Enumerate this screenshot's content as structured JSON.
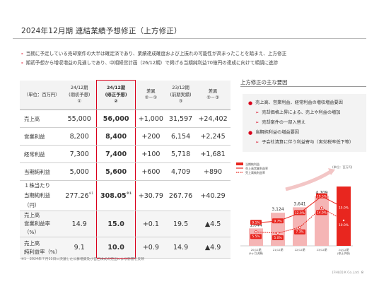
{
  "title": "2024年12月期 連結業績予想修正（上方修正）",
  "bullets": [
    "当期に予定している売却案件の大半は確定済であり、業績達成確度および上振れの可能性が高まったことを踏まえ、上方修正",
    "期初予想から増収増益の見通しであり、中期経営計画（26/12期）で掲げる当期純利益70億円の達成に向けて順調に進捗"
  ],
  "table": {
    "unit_label": "（単位：百万円）",
    "headers": [
      {
        "l1": "24/12期",
        "l2": "(期初予想)",
        "l3": "①"
      },
      {
        "l1": "24/12期",
        "l2": "(修正予想)",
        "l3": "②"
      },
      {
        "l1": "差異",
        "l2": "②－①",
        "l3": ""
      },
      {
        "l1": "23/12期",
        "l2": "(前期実績)",
        "l3": "③"
      },
      {
        "l1": "差異",
        "l2": "②－③",
        "l3": ""
      }
    ],
    "rows": [
      {
        "label": "売上高",
        "c1": "55,000",
        "c2": "56,000",
        "c3": "+1,000",
        "c4": "31,597",
        "c5": "+24,402"
      },
      {
        "label": "営業利益",
        "c1": "8,200",
        "c2": "8,400",
        "c3": "+200",
        "c4": "6,154",
        "c5": "+2,245"
      },
      {
        "label": "経常利益",
        "c1": "7,300",
        "c2": "7,400",
        "c3": "+100",
        "c4": "5,718",
        "c5": "+1,681"
      },
      {
        "label": "当期純利益",
        "c1": "5,000",
        "c2": "5,600",
        "c3": "+600",
        "c4": "4,709",
        "c5": "+890"
      }
    ],
    "eps": {
      "label1": "１株当たり",
      "label2": "当期純利益（円）",
      "note": "※1",
      "c1": "277.26",
      "c2": "308.05",
      "c3": "+30.79",
      "c4": "267.76",
      "c5": "+40.29"
    },
    "ratios": [
      {
        "label1": "売上高",
        "label2": "営業利益率（%）",
        "c1": "14.9",
        "c2": "15.0",
        "c3": "+0.1",
        "c4": "19.5",
        "c5": "▲4.5"
      },
      {
        "label1": "売上高",
        "label2": "純利益率（%）",
        "c1": "9.1",
        "c2": "10.0",
        "c3": "+0.9",
        "c4": "14.9",
        "c5": "▲4.9"
      }
    ]
  },
  "footnote": "※1　2024年７月11日に決議した公募増資及び自己株式の売出による影響を反映",
  "reasons": {
    "title": "上方修正の主な要因",
    "items": [
      {
        "main": "売上高、営業利益、経常利益の増収増益要因",
        "subs": [
          "売却価格上昇による、売上や利益の増加",
          "売却案件の一部入替え"
        ]
      },
      {
        "main": "当期純利益の増益要因",
        "subs": [
          "子会社清算に伴う利益寄与（実効税率低下等）"
        ]
      }
    ]
  },
  "chart_data": {
    "type": "bar",
    "unit": "(単位：百万円)",
    "legend": [
      "当期純利益",
      "売上高営業利益率",
      "売上高純利益率"
    ],
    "categories": [
      "20/12期\n(9ヶ月決算)",
      "21/12期",
      "22/12期",
      "23/12期",
      "24/12期\n(修正予想)"
    ],
    "series": [
      {
        "name": "当期純利益",
        "values": [
          1644,
          3124,
          3641,
          4709,
          5600
        ]
      },
      {
        "name": "売上高営業利益率",
        "values": [
          9.1,
          9.7,
          12.9,
          19.5,
          15.0
        ]
      },
      {
        "name": "売上高純利益率",
        "values": [
          5.5,
          5.0,
          7.3,
          14.9,
          10.0
        ]
      }
    ],
    "value_labels": [
      "1,644",
      "3,124",
      "3,641",
      "4,709",
      "5,600"
    ],
    "op_labels": [
      "9.1%",
      "9.7%",
      "12.9%",
      "19.5%",
      "15.0%"
    ],
    "net_labels": [
      "5.5%",
      "5.0%",
      "7.3%",
      "14.9%",
      "10.0%"
    ],
    "colors": {
      "bar": "#f5b5b5",
      "bar_last": "#e8261f",
      "line_op": "#e8261f",
      "line_net": "#e8261f"
    }
  },
  "logo": "[FHLD] K Co.,Ltd.",
  "page_number": "8"
}
